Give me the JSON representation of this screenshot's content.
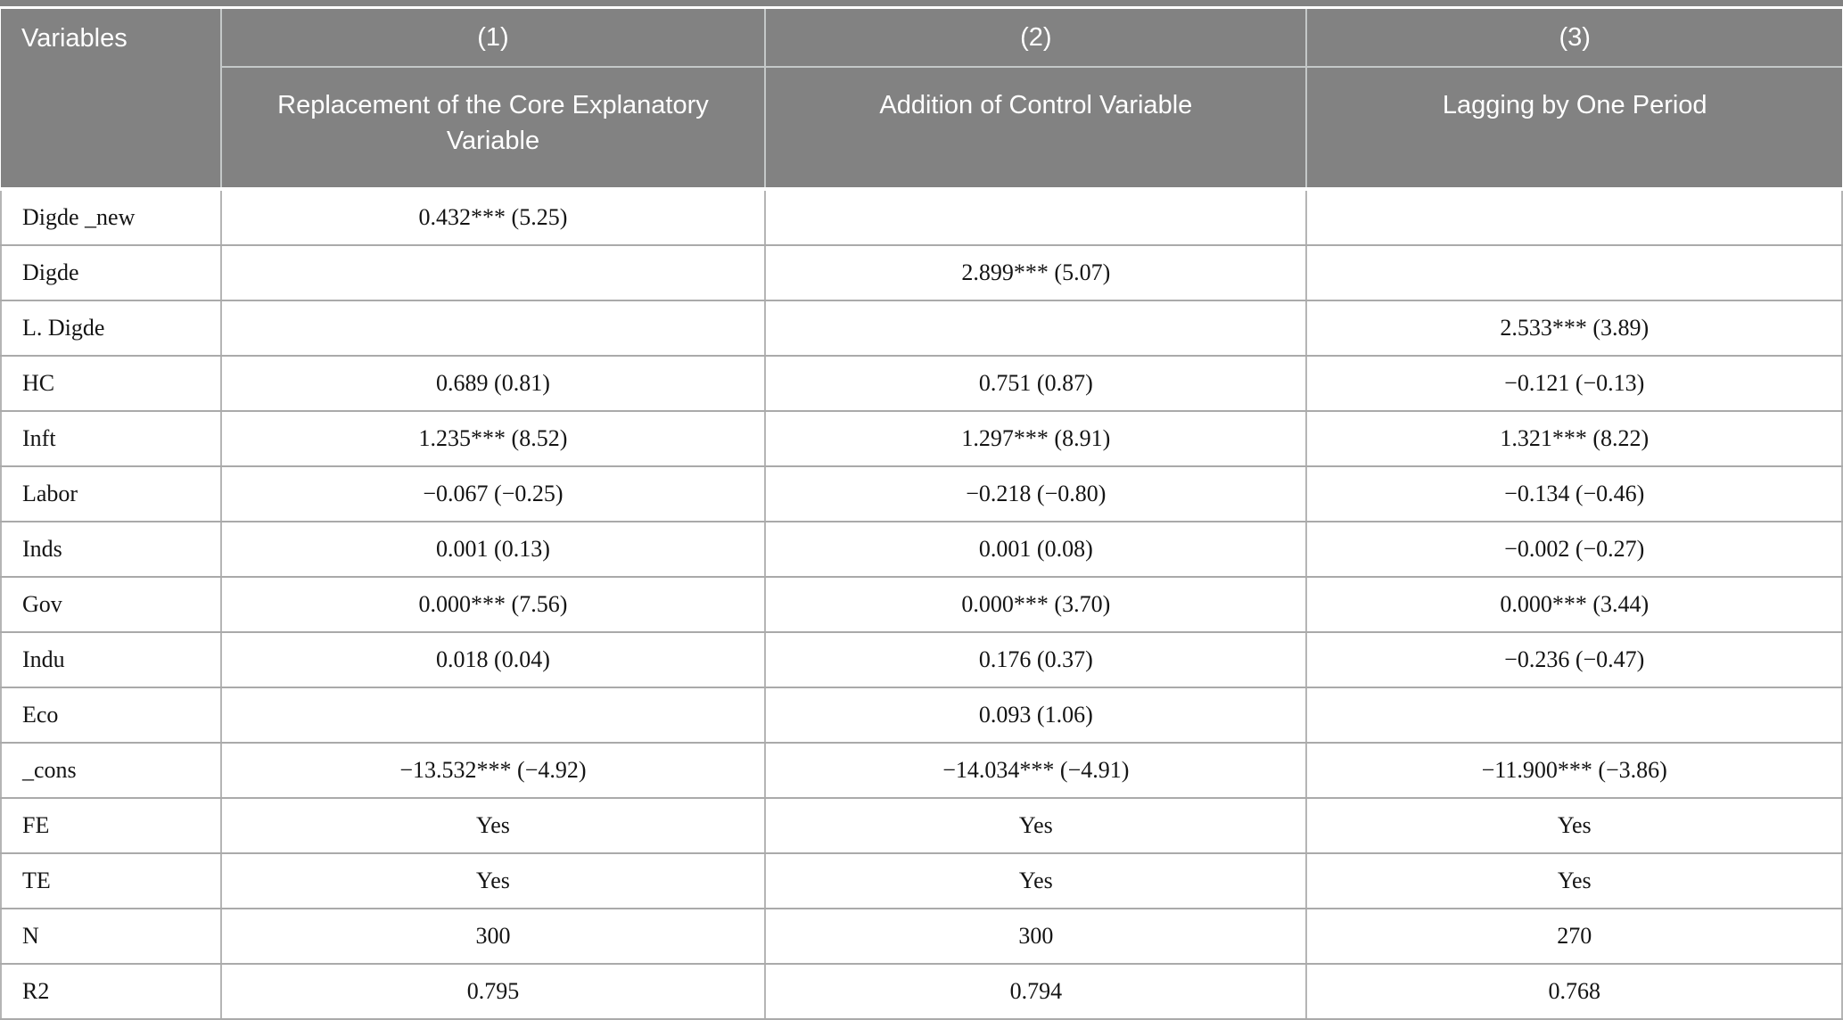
{
  "table": {
    "header": {
      "variables_label": "Variables",
      "columns": [
        {
          "number": "(1)",
          "title": "Replacement of the Core Explanatory Variable"
        },
        {
          "number": "(2)",
          "title": "Addition of Control Variable"
        },
        {
          "number": "(3)",
          "title": "Lagging by One Period"
        }
      ]
    },
    "rows": [
      {
        "label": "Digde _new",
        "c1": "0.432*** (5.25)",
        "c2": "",
        "c3": ""
      },
      {
        "label": "Digde",
        "c1": "",
        "c2": "2.899*** (5.07)",
        "c3": ""
      },
      {
        "label": "L. Digde",
        "c1": "",
        "c2": "",
        "c3": "2.533*** (3.89)"
      },
      {
        "label": "HC",
        "c1": "0.689 (0.81)",
        "c2": "0.751 (0.87)",
        "c3": "−0.121 (−0.13)"
      },
      {
        "label": "Inft",
        "c1": "1.235*** (8.52)",
        "c2": "1.297*** (8.91)",
        "c3": "1.321*** (8.22)"
      },
      {
        "label": "Labor",
        "c1": "−0.067 (−0.25)",
        "c2": "−0.218 (−0.80)",
        "c3": "−0.134 (−0.46)"
      },
      {
        "label": "Inds",
        "c1": "0.001 (0.13)",
        "c2": "0.001 (0.08)",
        "c3": "−0.002 (−0.27)"
      },
      {
        "label": "Gov",
        "c1": "0.000*** (7.56)",
        "c2": "0.000*** (3.70)",
        "c3": "0.000*** (3.44)"
      },
      {
        "label": "Indu",
        "c1": "0.018 (0.04)",
        "c2": "0.176 (0.37)",
        "c3": "−0.236 (−0.47)"
      },
      {
        "label": "Eco",
        "c1": "",
        "c2": "0.093 (1.06)",
        "c3": ""
      },
      {
        "label": "_cons",
        "c1": "−13.532*** (−4.92)",
        "c2": "−14.034*** (−4.91)",
        "c3": "−11.900*** (−3.86)"
      },
      {
        "label": "FE",
        "c1": "Yes",
        "c2": "Yes",
        "c3": "Yes"
      },
      {
        "label": "TE",
        "c1": "Yes",
        "c2": "Yes",
        "c3": "Yes"
      },
      {
        "label": "N",
        "c1": "300",
        "c2": "300",
        "c3": "270"
      },
      {
        "label": "R2",
        "c1": "0.795",
        "c2": "0.794",
        "c3": "0.768"
      }
    ],
    "colors": {
      "header_background": "#828282",
      "header_text": "#ffffff",
      "header_divider": "#c4c8c8",
      "body_border": "#b5b5b5"
    }
  }
}
